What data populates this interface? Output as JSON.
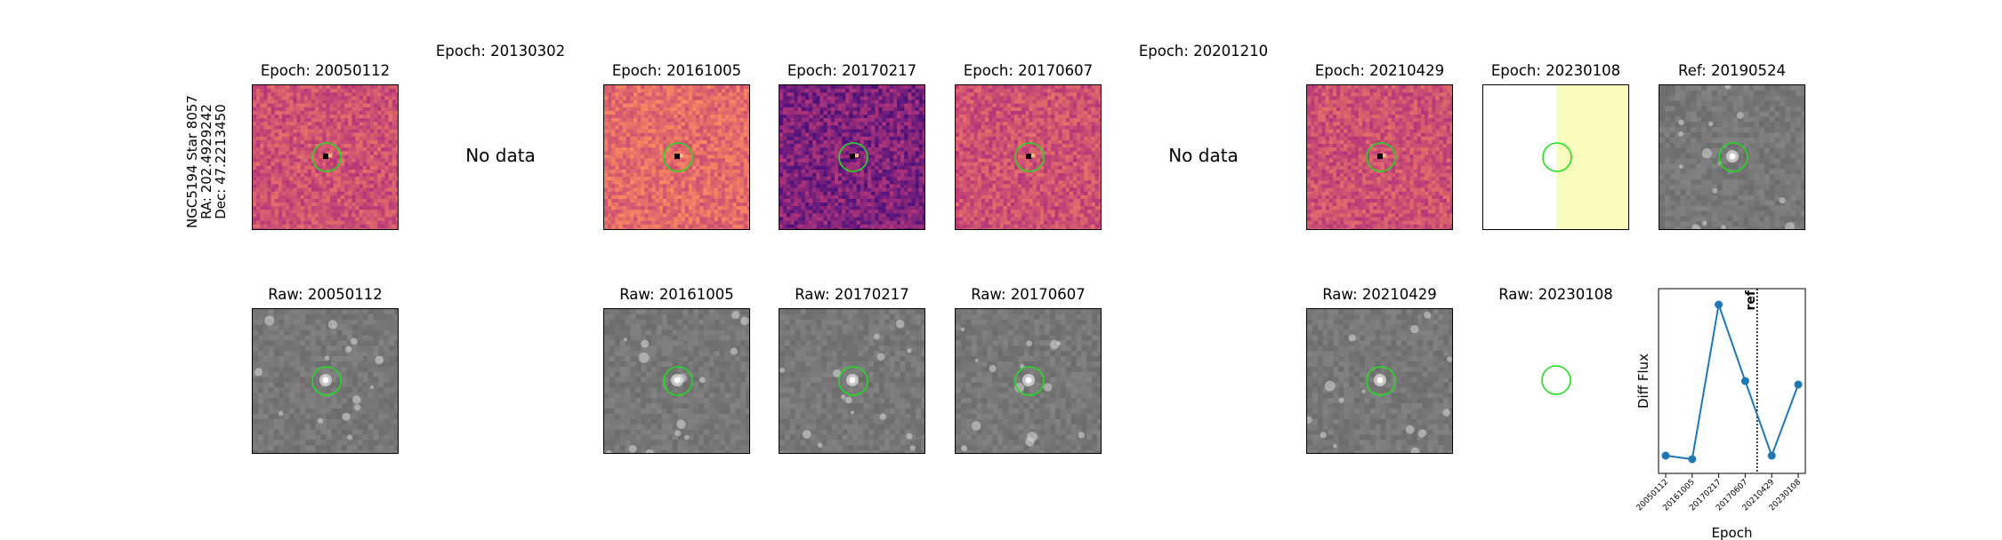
{
  "star_info": {
    "line1": "NGC5194 Star 8057",
    "line2": "RA: 202.4929242",
    "line3": "Dec: 47.2213450"
  },
  "diff_row": [
    {
      "title": "Epoch: 20050112",
      "status": "image",
      "style": "magma"
    },
    {
      "title": "Epoch: 20130302",
      "status": "nodata",
      "message": "No data"
    },
    {
      "title": "Epoch: 20161005",
      "status": "image",
      "style": "magma-bright"
    },
    {
      "title": "Epoch: 20170217",
      "status": "image",
      "style": "magma-dark"
    },
    {
      "title": "Epoch: 20170607",
      "status": "image",
      "style": "magma"
    },
    {
      "title": "Epoch: 20201210",
      "status": "nodata",
      "message": "No data"
    },
    {
      "title": "Epoch: 20210429",
      "status": "image",
      "style": "magma"
    },
    {
      "title": "Epoch: 20230108",
      "status": "image",
      "style": "partial"
    },
    {
      "title": "Ref: 20190524",
      "status": "image",
      "style": "gray"
    }
  ],
  "raw_row": [
    {
      "title": "Raw: 20050112",
      "status": "image"
    },
    {
      "title": "",
      "status": "empty"
    },
    {
      "title": "Raw: 20161005",
      "status": "image"
    },
    {
      "title": "Raw: 20170217",
      "status": "image"
    },
    {
      "title": "Raw: 20170607",
      "status": "image"
    },
    {
      "title": "",
      "status": "empty"
    },
    {
      "title": "Raw: 20210429",
      "status": "image"
    },
    {
      "title": "Raw: 20230108",
      "status": "circle-only"
    }
  ],
  "colors": {
    "circle": "#22dd22",
    "series": "#1f77b4",
    "partial_fill": "#fafcbe"
  },
  "chart_data": {
    "type": "line",
    "title": "",
    "xlabel": "Epoch",
    "ylabel": "Diff Flux",
    "categories": [
      "20050112",
      "20161005",
      "20170217",
      "20170607",
      "20210429",
      "20230108"
    ],
    "values": [
      0.1,
      0.08,
      0.95,
      0.52,
      0.1,
      0.5
    ],
    "ylim": [
      0,
      1.04
    ],
    "ref_line": {
      "label": "ref",
      "position_between": [
        "20170607",
        "20210429"
      ]
    },
    "grid": false,
    "legend": "none"
  }
}
